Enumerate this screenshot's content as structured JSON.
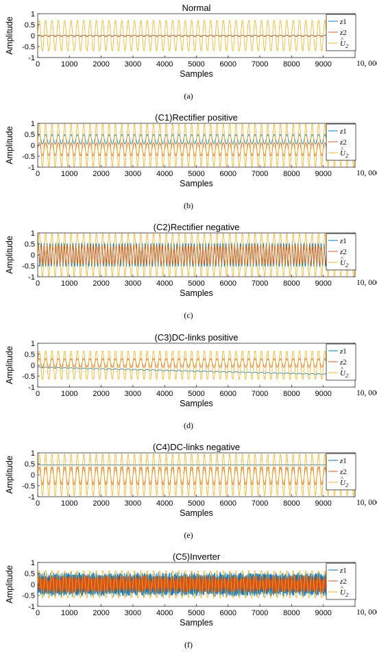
{
  "figure": {
    "xlabel": "Samples",
    "ylabel": "Amplitude",
    "x_ticks": [
      0,
      1000,
      2000,
      3000,
      4000,
      5000,
      6000,
      7000,
      8000,
      9000
    ],
    "x_end_label": "10, 000",
    "legend": [
      "z1",
      "z2",
      "U2"
    ]
  },
  "colors": {
    "z1": "#0072BD",
    "z2": "#D95319",
    "U2": "#EDB120"
  },
  "chart_data": [
    {
      "type": "line",
      "title": "Normal",
      "caption": "(a)",
      "xlim": [
        0,
        10000
      ],
      "ylim": [
        -1,
        1
      ],
      "yticks": [
        -1,
        -0.5,
        0,
        0.5,
        1
      ],
      "series": [
        {
          "name": "z1",
          "color": "#0072BD",
          "offset": 0.0,
          "amplitude": 0.02,
          "cycles": 50,
          "noise": 0.0,
          "drift": 0.0
        },
        {
          "name": "z2",
          "color": "#D95319",
          "offset": -0.01,
          "amplitude": 0.03,
          "cycles": 50,
          "noise": 0.0,
          "drift": 0.0
        },
        {
          "name": "U2",
          "color": "#EDB120",
          "offset": 0.0,
          "amplitude": 0.7,
          "cycles": 50,
          "noise": 0.0,
          "drift": 0.0
        }
      ]
    },
    {
      "type": "line",
      "title": "(C1)Rectifier positive",
      "caption": "(b)",
      "xlim": [
        0,
        10000
      ],
      "ylim": [
        -1,
        1
      ],
      "yticks": [
        -1,
        -0.5,
        0,
        0.5,
        1
      ],
      "series": [
        {
          "name": "z1",
          "color": "#0072BD",
          "offset": 0.27,
          "amplitude": 0.22,
          "cycles": 50,
          "noise": 0.0,
          "drift": 0.0
        },
        {
          "name": "z2",
          "color": "#D95319",
          "offset": -0.18,
          "amplitude": 0.3,
          "cycles": 50,
          "noise": 0.0,
          "drift": 0.0
        },
        {
          "name": "U2",
          "color": "#EDB120",
          "offset": 0.0,
          "amplitude": 0.97,
          "cycles": 50,
          "noise": 0.0,
          "drift": 0.0
        }
      ]
    },
    {
      "type": "line",
      "title": "(C2)Rectifier negative",
      "caption": "(c)",
      "xlim": [
        0,
        10000
      ],
      "ylim": [
        -1,
        1
      ],
      "yticks": [
        -1,
        -0.5,
        0,
        0.5,
        1
      ],
      "series": [
        {
          "name": "z1",
          "color": "#0072BD",
          "offset": 0.0,
          "amplitude": 0.52,
          "cycles": 110,
          "noise": 0.0,
          "drift": 0.0
        },
        {
          "name": "z2",
          "color": "#D95319",
          "offset": 0.0,
          "amplitude": 0.38,
          "cycles": 110,
          "noise": 0.1,
          "drift": 0.0
        },
        {
          "name": "U2",
          "color": "#EDB120",
          "offset": 0.0,
          "amplitude": 0.97,
          "cycles": 50,
          "noise": 0.0,
          "drift": 0.0
        }
      ]
    },
    {
      "type": "line",
      "title": "(C3)DC-links positive",
      "caption": "(d)",
      "xlim": [
        0,
        10000
      ],
      "ylim": [
        -1,
        1
      ],
      "yticks": [
        -1,
        -0.5,
        0,
        0.5,
        1
      ],
      "series": [
        {
          "name": "z1",
          "color": "#0072BD",
          "offset": -0.1,
          "amplitude": 0.02,
          "cycles": 50,
          "noise": 0.0,
          "drift": -0.35
        },
        {
          "name": "z2",
          "color": "#D95319",
          "offset": 0.1,
          "amplitude": 0.2,
          "cycles": 50,
          "noise": 0.0,
          "drift": 0.0
        },
        {
          "name": "U2",
          "color": "#EDB120",
          "offset": 0.0,
          "amplitude": 0.65,
          "cycles": 50,
          "noise": 0.0,
          "drift": 0.0
        }
      ]
    },
    {
      "type": "line",
      "title": "(C4)DC-links negative",
      "caption": "(e)",
      "xlim": [
        0,
        10000
      ],
      "ylim": [
        -1,
        1
      ],
      "yticks": [
        -1,
        -0.5,
        0,
        0.5,
        1
      ],
      "series": [
        {
          "name": "z1",
          "color": "#0072BD",
          "offset": 0.45,
          "amplitude": 0.01,
          "cycles": 50,
          "noise": 0.0,
          "drift": 0.0
        },
        {
          "name": "z2",
          "color": "#D95319",
          "offset": -0.05,
          "amplitude": 0.4,
          "cycles": 50,
          "noise": 0.0,
          "drift": 0.0
        },
        {
          "name": "U2",
          "color": "#EDB120",
          "offset": 0.0,
          "amplitude": 0.95,
          "cycles": 50,
          "noise": 0.0,
          "drift": 0.0
        }
      ]
    },
    {
      "type": "line",
      "title": "(C5)Inverter",
      "caption": "(f)",
      "xlim": [
        0,
        10000
      ],
      "ylim": [
        -1,
        1
      ],
      "yticks": [
        -1,
        -0.5,
        0,
        0.5,
        1
      ],
      "series": [
        {
          "name": "z1",
          "color": "#0072BD",
          "offset": 0.0,
          "amplitude": 0.45,
          "cycles": 400,
          "noise": 0.12,
          "drift": 0.0
        },
        {
          "name": "z2",
          "color": "#D95319",
          "offset": 0.0,
          "amplitude": 0.28,
          "cycles": 400,
          "noise": 0.15,
          "drift": 0.0
        },
        {
          "name": "U2",
          "color": "#EDB120",
          "offset": 0.0,
          "amplitude": 0.62,
          "cycles": 50,
          "noise": 0.0,
          "drift": 0.0
        }
      ]
    }
  ]
}
